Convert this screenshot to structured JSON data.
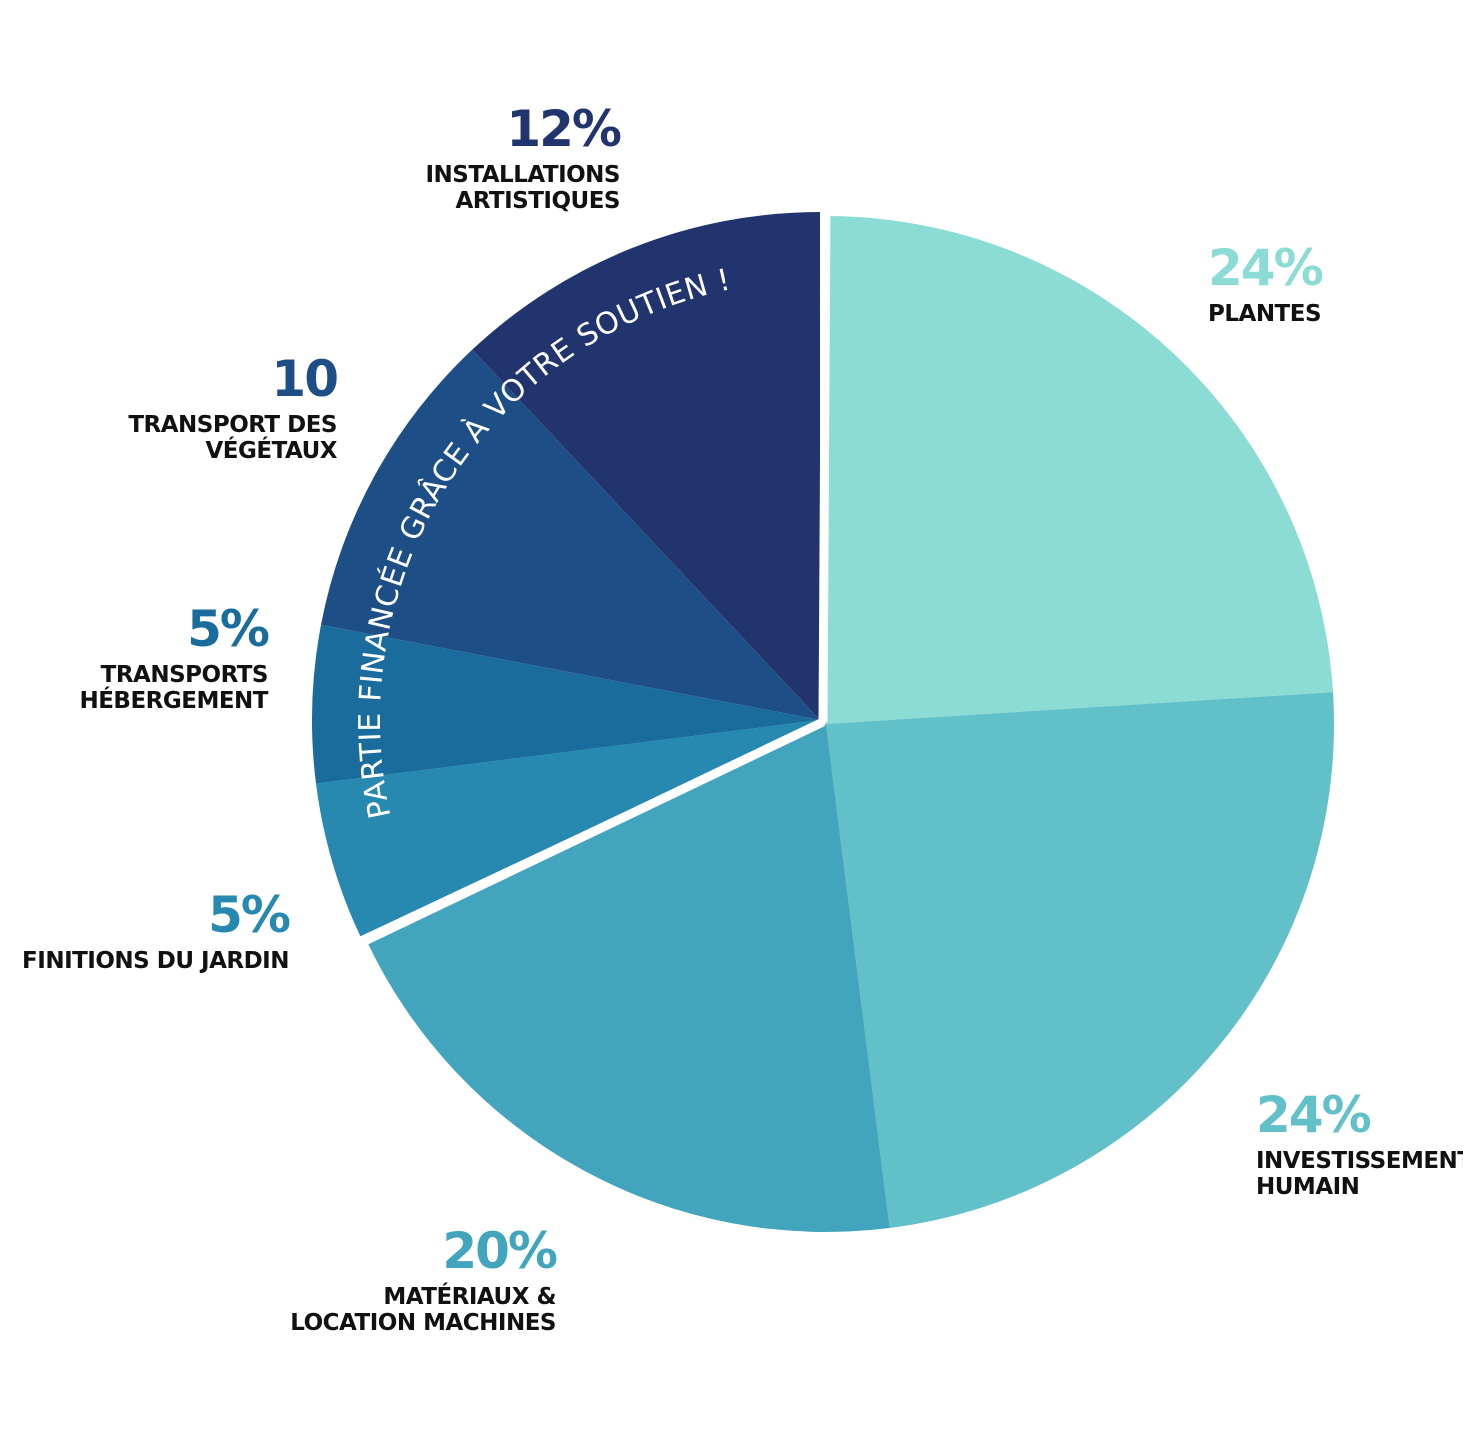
{
  "chart_data": {
    "type": "pie",
    "title": "",
    "subtitle": "",
    "arc_text": "PARTIE FINANCÉE GRÂCE À VOTRE SOUTIEN !",
    "colors": {
      "plantes": "#8adcd4",
      "investissement": "#62c0c8",
      "materiaux": "#42a4bd",
      "finitions": "#2789b0",
      "transports": "#1a6c9d",
      "vegetaux": "#1d4f86",
      "installations": "#22346d",
      "text": "#111111"
    },
    "slices": [
      {
        "id": "plantes",
        "value": 24,
        "value_label": "24%",
        "label_lines": [
          "PLANTES"
        ],
        "color": "#8adcd4",
        "pct_color": "#8adcd4",
        "exploded": false
      },
      {
        "id": "investissement",
        "value": 24,
        "value_label": "24%",
        "label_lines": [
          "INVESTISSEMENT",
          "HUMAIN"
        ],
        "color": "#62c0c8",
        "pct_color": "#62c0c8",
        "exploded": false
      },
      {
        "id": "materiaux",
        "value": 20,
        "value_label": "20%",
        "label_lines": [
          "MATÉRIAUX &",
          "LOCATION MACHINES"
        ],
        "color": "#42a4bd",
        "pct_color": "#42a4bd",
        "exploded": false
      },
      {
        "id": "finitions",
        "value": 5,
        "value_label": "5%",
        "label_lines": [
          "FINITIONS DU JARDIN"
        ],
        "color": "#2789b0",
        "pct_color": "#2789b0",
        "exploded": true
      },
      {
        "id": "transports",
        "value": 5,
        "value_label": "5%",
        "label_lines": [
          "TRANSPORTS",
          "HÉBERGEMENT"
        ],
        "color": "#1a6c9d",
        "pct_color": "#1a6c9d",
        "exploded": true
      },
      {
        "id": "vegetaux",
        "value": 10,
        "value_label": "10",
        "label_lines": [
          "TRANSPORT DES",
          "VÉGÉTAUX"
        ],
        "color": "#1d4f86",
        "pct_color": "#1d4f86",
        "exploded": true
      },
      {
        "id": "installations",
        "value": 12,
        "value_label": "12%",
        "label_lines": [
          "INSTALLATIONS",
          "ARTISTIQUES"
        ],
        "color": "#22346d",
        "pct_color": "#22346d",
        "exploded": true
      }
    ]
  }
}
